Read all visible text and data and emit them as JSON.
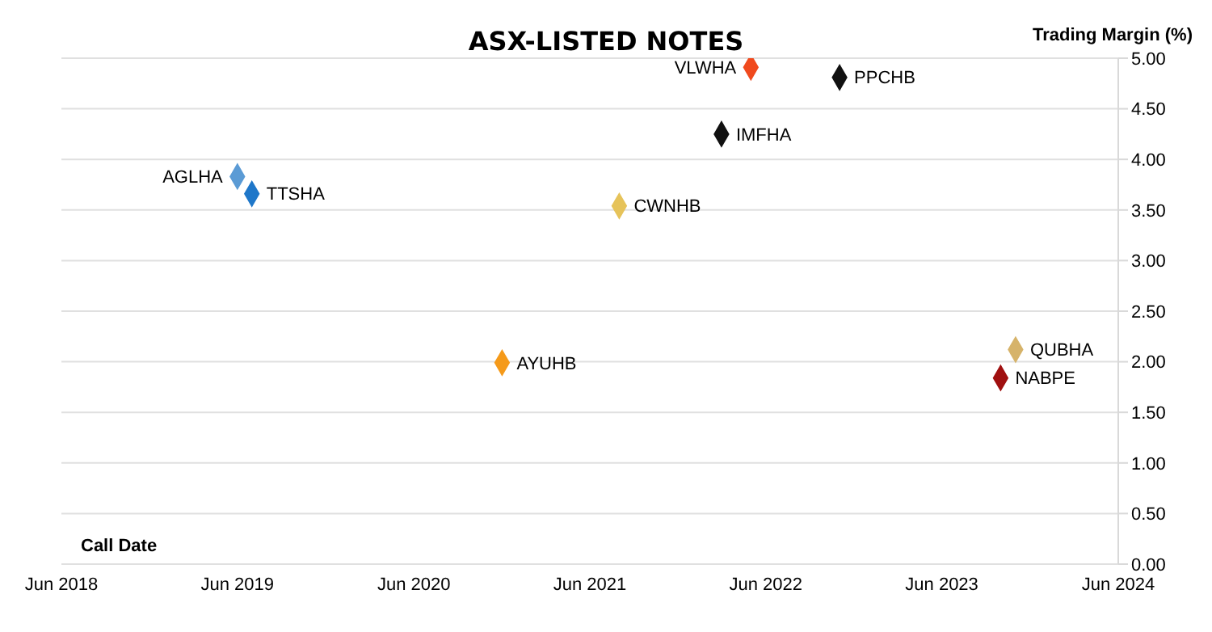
{
  "chart_data": {
    "type": "scatter",
    "title": "ASX-LISTED NOTES",
    "xlabel": "Call Date",
    "ylabel": "Trading Margin (%)",
    "series": [
      {
        "name": "AGLHA",
        "color": "#5b9bd5",
        "x": [
          "2019-06"
        ],
        "values": [
          3.83
        ]
      },
      {
        "name": "TTSHA",
        "color": "#1f77c9",
        "x": [
          "2019-07"
        ],
        "values": [
          3.66
        ]
      },
      {
        "name": "CWNHB",
        "color": "#e6c35a",
        "x": [
          "2021-08"
        ],
        "values": [
          3.54
        ]
      },
      {
        "name": "IMFHA",
        "color": "#111111",
        "x": [
          "2022-03"
        ],
        "values": [
          4.25
        ]
      },
      {
        "name": "VLWHA",
        "color": "#f04a1e",
        "x": [
          "2022-05"
        ],
        "values": [
          4.91
        ]
      },
      {
        "name": "PPCHB",
        "color": "#111111",
        "x": [
          "2022-11"
        ],
        "values": [
          4.81
        ]
      },
      {
        "name": "AYUHB",
        "color": "#f59a1a",
        "x": [
          "2020-12"
        ],
        "values": [
          1.99
        ]
      },
      {
        "name": "QUBHA",
        "color": "#d6b36a",
        "x": [
          "2023-11"
        ],
        "values": [
          2.12
        ]
      },
      {
        "name": "NABPE",
        "color": "#a01010",
        "x": [
          "2023-10"
        ],
        "values": [
          1.84
        ]
      }
    ],
    "xlim": [
      "2018-06",
      "2024-06"
    ],
    "xticks": [
      {
        "value": "2018-06",
        "label": "Jun 2018"
      },
      {
        "value": "2019-06",
        "label": "Jun 2019"
      },
      {
        "value": "2020-06",
        "label": "Jun 2020"
      },
      {
        "value": "2021-06",
        "label": "Jun 2021"
      },
      {
        "value": "2022-06",
        "label": "Jun 2022"
      },
      {
        "value": "2023-06",
        "label": "Jun 2023"
      },
      {
        "value": "2024-06",
        "label": "Jun 2024"
      }
    ],
    "ylim": [
      0,
      5
    ],
    "yticks": [
      {
        "value": 0,
        "label": "0.00"
      },
      {
        "value": 0.5,
        "label": "0.50"
      },
      {
        "value": 1,
        "label": "1.00"
      },
      {
        "value": 1.5,
        "label": "1.50"
      },
      {
        "value": 2,
        "label": "2.00"
      },
      {
        "value": 2.5,
        "label": "2.50"
      },
      {
        "value": 3,
        "label": "3.00"
      },
      {
        "value": 3.5,
        "label": "3.50"
      },
      {
        "value": 4,
        "label": "4.00"
      },
      {
        "value": 4.5,
        "label": "4.50"
      },
      {
        "value": 5,
        "label": "5.00"
      }
    ],
    "grid": "y",
    "legend": false,
    "marker": "diamond"
  }
}
